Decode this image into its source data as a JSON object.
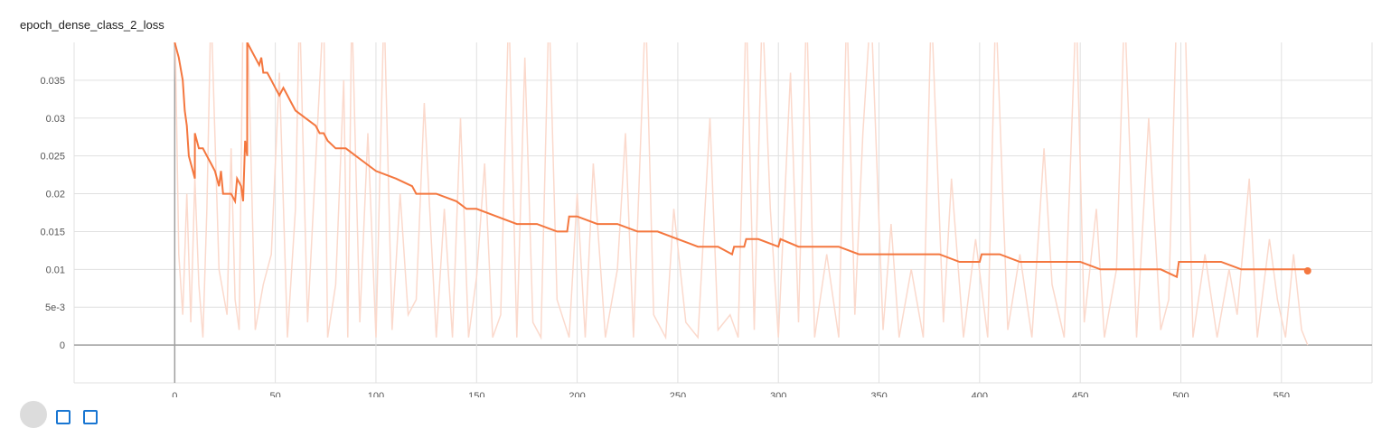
{
  "title": "epoch_dense_class_2_loss",
  "colors": {
    "smoothed": "#f4773f",
    "raw": "#fbd9cc",
    "grid": "#e0e0e0",
    "axis": "#9e9e9e",
    "tick": "#555555"
  },
  "chart_data": {
    "type": "line",
    "title": "epoch_dense_class_2_loss",
    "xlabel": "",
    "ylabel": "",
    "xlim": [
      -50,
      595
    ],
    "ylim": [
      -0.005,
      0.04
    ],
    "grid": true,
    "x_ticks": [
      0,
      50,
      100,
      150,
      200,
      250,
      300,
      350,
      400,
      450,
      500,
      550
    ],
    "y_ticks": [
      {
        "value": 0,
        "label": "0"
      },
      {
        "value": 0.005,
        "label": "5e-3"
      },
      {
        "value": 0.01,
        "label": "0.01"
      },
      {
        "value": 0.015,
        "label": "0.015"
      },
      {
        "value": 0.02,
        "label": "0.02"
      },
      {
        "value": 0.025,
        "label": "0.025"
      },
      {
        "value": 0.03,
        "label": "0.03"
      },
      {
        "value": 0.035,
        "label": "0.035"
      }
    ],
    "series": [
      {
        "role": "smoothed",
        "points": [
          [
            0,
            0.045
          ],
          [
            0,
            0.04
          ],
          [
            2,
            0.038
          ],
          [
            4,
            0.035
          ],
          [
            5,
            0.031
          ],
          [
            6,
            0.029
          ],
          [
            7,
            0.025
          ],
          [
            9,
            0.023
          ],
          [
            10,
            0.022
          ],
          [
            10,
            0.028
          ],
          [
            12,
            0.026
          ],
          [
            14,
            0.026
          ],
          [
            16,
            0.025
          ],
          [
            18,
            0.024
          ],
          [
            20,
            0.023
          ],
          [
            22,
            0.021
          ],
          [
            23,
            0.023
          ],
          [
            24,
            0.02
          ],
          [
            26,
            0.02
          ],
          [
            28,
            0.02
          ],
          [
            30,
            0.019
          ],
          [
            31,
            0.022
          ],
          [
            33,
            0.021
          ],
          [
            34,
            0.019
          ],
          [
            35,
            0.027
          ],
          [
            36,
            0.025
          ],
          [
            36,
            0.04
          ],
          [
            38,
            0.039
          ],
          [
            40,
            0.038
          ],
          [
            42,
            0.037
          ],
          [
            43,
            0.038
          ],
          [
            44,
            0.036
          ],
          [
            46,
            0.036
          ],
          [
            48,
            0.035
          ],
          [
            50,
            0.034
          ],
          [
            52,
            0.033
          ],
          [
            54,
            0.034
          ],
          [
            56,
            0.033
          ],
          [
            58,
            0.032
          ],
          [
            60,
            0.031
          ],
          [
            65,
            0.03
          ],
          [
            70,
            0.029
          ],
          [
            72,
            0.028
          ],
          [
            74,
            0.028
          ],
          [
            76,
            0.027
          ],
          [
            80,
            0.026
          ],
          [
            85,
            0.026
          ],
          [
            90,
            0.025
          ],
          [
            95,
            0.024
          ],
          [
            100,
            0.023
          ],
          [
            110,
            0.022
          ],
          [
            118,
            0.021
          ],
          [
            120,
            0.02
          ],
          [
            130,
            0.02
          ],
          [
            140,
            0.019
          ],
          [
            145,
            0.018
          ],
          [
            150,
            0.018
          ],
          [
            160,
            0.017
          ],
          [
            170,
            0.016
          ],
          [
            175,
            0.016
          ],
          [
            180,
            0.016
          ],
          [
            190,
            0.015
          ],
          [
            195,
            0.015
          ],
          [
            196,
            0.017
          ],
          [
            200,
            0.017
          ],
          [
            210,
            0.016
          ],
          [
            220,
            0.016
          ],
          [
            230,
            0.015
          ],
          [
            240,
            0.015
          ],
          [
            250,
            0.014
          ],
          [
            260,
            0.013
          ],
          [
            270,
            0.013
          ],
          [
            277,
            0.012
          ],
          [
            278,
            0.013
          ],
          [
            283,
            0.013
          ],
          [
            284,
            0.014
          ],
          [
            290,
            0.014
          ],
          [
            300,
            0.013
          ],
          [
            301,
            0.014
          ],
          [
            310,
            0.013
          ],
          [
            320,
            0.013
          ],
          [
            330,
            0.013
          ],
          [
            340,
            0.012
          ],
          [
            350,
            0.012
          ],
          [
            360,
            0.012
          ],
          [
            370,
            0.012
          ],
          [
            380,
            0.012
          ],
          [
            390,
            0.011
          ],
          [
            400,
            0.011
          ],
          [
            401,
            0.012
          ],
          [
            410,
            0.012
          ],
          [
            420,
            0.011
          ],
          [
            430,
            0.011
          ],
          [
            440,
            0.011
          ],
          [
            450,
            0.011
          ],
          [
            460,
            0.01
          ],
          [
            470,
            0.01
          ],
          [
            480,
            0.01
          ],
          [
            490,
            0.01
          ],
          [
            498,
            0.009
          ],
          [
            499,
            0.011
          ],
          [
            510,
            0.011
          ],
          [
            520,
            0.011
          ],
          [
            530,
            0.01
          ],
          [
            540,
            0.01
          ],
          [
            550,
            0.01
          ],
          [
            563,
            0.01
          ]
        ]
      },
      {
        "role": "raw",
        "spikes": [
          [
            0,
            0.045
          ],
          [
            2,
            0.012
          ],
          [
            4,
            0.004
          ],
          [
            6,
            0.02
          ],
          [
            8,
            0.003
          ],
          [
            10,
            0.022
          ],
          [
            12,
            0.008
          ],
          [
            14,
            0.001
          ],
          [
            16,
            0.018
          ],
          [
            18,
            0.045
          ],
          [
            22,
            0.01
          ],
          [
            26,
            0.004
          ],
          [
            28,
            0.026
          ],
          [
            30,
            0.006
          ],
          [
            32,
            0.002
          ],
          [
            34,
            0.045
          ],
          [
            36,
            0.045
          ],
          [
            40,
            0.002
          ],
          [
            44,
            0.008
          ],
          [
            48,
            0.012
          ],
          [
            52,
            0.036
          ],
          [
            56,
            0.001
          ],
          [
            60,
            0.018
          ],
          [
            62,
            0.045
          ],
          [
            66,
            0.003
          ],
          [
            70,
            0.024
          ],
          [
            74,
            0.045
          ],
          [
            76,
            0.001
          ],
          [
            80,
            0.008
          ],
          [
            84,
            0.035
          ],
          [
            86,
            0.001
          ],
          [
            88,
            0.045
          ],
          [
            92,
            0.003
          ],
          [
            96,
            0.028
          ],
          [
            100,
            0.001
          ],
          [
            104,
            0.045
          ],
          [
            108,
            0.002
          ],
          [
            112,
            0.02
          ],
          [
            116,
            0.004
          ],
          [
            120,
            0.006
          ],
          [
            124,
            0.032
          ],
          [
            130,
            0.001
          ],
          [
            134,
            0.018
          ],
          [
            138,
            0.001
          ],
          [
            142,
            0.03
          ],
          [
            146,
            0.001
          ],
          [
            150,
            0.009
          ],
          [
            154,
            0.024
          ],
          [
            158,
            0.001
          ],
          [
            162,
            0.004
          ],
          [
            166,
            0.045
          ],
          [
            170,
            0.001
          ],
          [
            174,
            0.038
          ],
          [
            178,
            0.003
          ],
          [
            182,
            0.001
          ],
          [
            186,
            0.045
          ],
          [
            190,
            0.006
          ],
          [
            196,
            0.001
          ],
          [
            200,
            0.02
          ],
          [
            204,
            0.001
          ],
          [
            208,
            0.024
          ],
          [
            214,
            0.001
          ],
          [
            220,
            0.01
          ],
          [
            224,
            0.028
          ],
          [
            228,
            0.001
          ],
          [
            234,
            0.045
          ],
          [
            238,
            0.004
          ],
          [
            244,
            0.001
          ],
          [
            248,
            0.018
          ],
          [
            254,
            0.003
          ],
          [
            260,
            0.001
          ],
          [
            266,
            0.03
          ],
          [
            270,
            0.002
          ],
          [
            276,
            0.004
          ],
          [
            280,
            0.001
          ],
          [
            284,
            0.045
          ],
          [
            288,
            0.002
          ],
          [
            292,
            0.045
          ],
          [
            296,
            0.018
          ],
          [
            300,
            0.001
          ],
          [
            306,
            0.036
          ],
          [
            310,
            0.003
          ],
          [
            314,
            0.045
          ],
          [
            318,
            0.001
          ],
          [
            324,
            0.012
          ],
          [
            330,
            0.001
          ],
          [
            334,
            0.045
          ],
          [
            338,
            0.004
          ],
          [
            342,
            0.028
          ],
          [
            346,
            0.045
          ],
          [
            352,
            0.002
          ],
          [
            356,
            0.016
          ],
          [
            360,
            0.001
          ],
          [
            366,
            0.01
          ],
          [
            372,
            0.001
          ],
          [
            376,
            0.045
          ],
          [
            382,
            0.003
          ],
          [
            386,
            0.022
          ],
          [
            392,
            0.001
          ],
          [
            398,
            0.014
          ],
          [
            404,
            0.001
          ],
          [
            408,
            0.045
          ],
          [
            414,
            0.002
          ],
          [
            420,
            0.012
          ],
          [
            426,
            0.001
          ],
          [
            432,
            0.026
          ],
          [
            436,
            0.008
          ],
          [
            442,
            0.001
          ],
          [
            448,
            0.045
          ],
          [
            452,
            0.003
          ],
          [
            458,
            0.018
          ],
          [
            462,
            0.001
          ],
          [
            468,
            0.01
          ],
          [
            472,
            0.045
          ],
          [
            478,
            0.001
          ],
          [
            484,
            0.03
          ],
          [
            490,
            0.002
          ],
          [
            494,
            0.006
          ],
          [
            498,
            0.045
          ],
          [
            502,
            0.045
          ],
          [
            506,
            0.001
          ],
          [
            512,
            0.012
          ],
          [
            518,
            0.001
          ],
          [
            524,
            0.01
          ],
          [
            528,
            0.004
          ],
          [
            534,
            0.022
          ],
          [
            538,
            0.001
          ],
          [
            544,
            0.014
          ],
          [
            548,
            0.006
          ],
          [
            552,
            0.001
          ],
          [
            556,
            0.012
          ],
          [
            560,
            0.002
          ],
          [
            563,
            0.0
          ]
        ]
      }
    ],
    "last_point": [
      563,
      0.0098
    ]
  },
  "footer": {
    "controls": [
      "expand",
      "data-toggle",
      "fit-toggle"
    ]
  }
}
